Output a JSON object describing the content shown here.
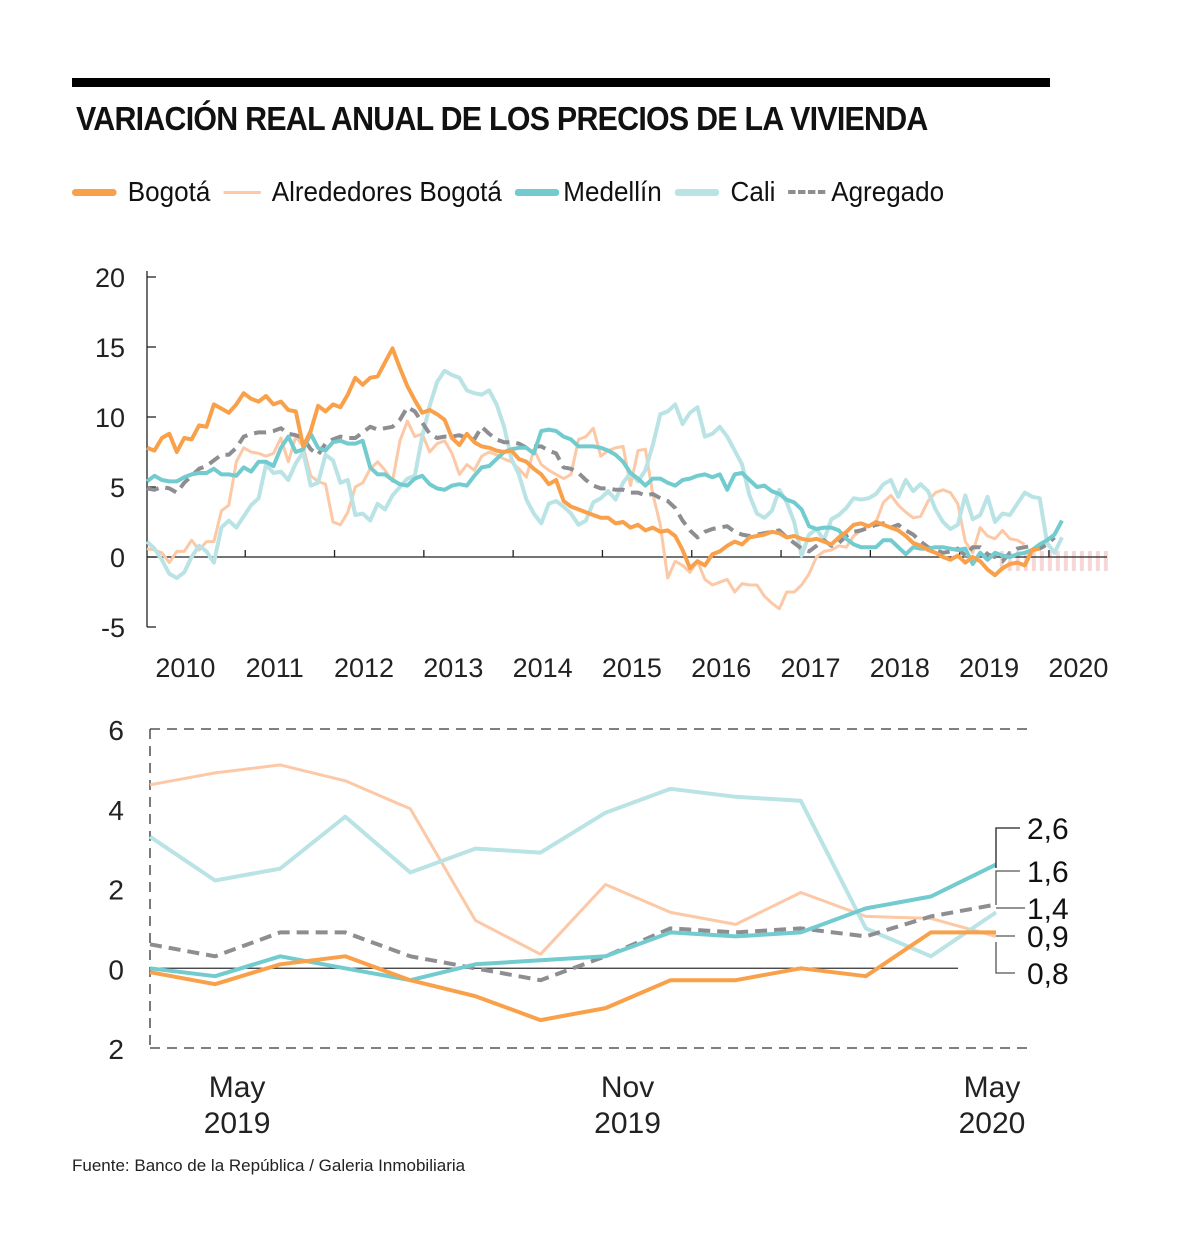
{
  "title": "VARIACIÓN REAL ANUAL DE LOS PRECIOS DE LA VIVIENDA",
  "source": "Fuente: Banco de la República / Galeria Inmobiliaria",
  "legend": [
    {
      "label": "Bogotá",
      "color": "#f9a14a",
      "style": "thick"
    },
    {
      "label": "Alrededores Bogotá",
      "color": "#fcc8a6",
      "style": "thin"
    },
    {
      "label": "Medellín",
      "color": "#72cbcf",
      "style": "thick"
    },
    {
      "label": "Cali",
      "color": "#b9e3e5",
      "style": "thick"
    },
    {
      "label": "Agregado",
      "color": "#8e8e92",
      "style": "dashed"
    }
  ],
  "chart_data": [
    {
      "type": "line",
      "title": "Variación real anual (2010–2020)",
      "xlabel": "",
      "ylabel": "",
      "x_start": 2009.9,
      "x_step": 0.0833,
      "xlim": [
        2009.9,
        2020.65
      ],
      "ylim": [
        -5,
        20
      ],
      "yticks": [
        "20",
        "15",
        "10",
        "5",
        "0",
        "-5"
      ],
      "ytick_values": [
        20,
        15,
        10,
        5,
        0,
        -5
      ],
      "xticks": [
        "2010",
        "2011",
        "2012",
        "2013",
        "2014",
        "2015",
        "2016",
        "2017",
        "2018",
        "2019",
        "2020"
      ],
      "xtick_values": [
        2010,
        2011,
        2012,
        2013,
        2014,
        2015,
        2016,
        2017,
        2018,
        2019,
        2020
      ],
      "shaded_region": {
        "from": 2019.45,
        "to": 2020.65,
        "color": "#f2c9c9"
      },
      "series": [
        {
          "name": "Bogotá",
          "values": [
            7.8,
            7.6,
            8.5,
            8.8,
            7.5,
            8.5,
            8.4,
            9.4,
            9.3,
            10.9,
            10.6,
            10.3,
            10.9,
            11.7,
            11.3,
            11.1,
            11.5,
            10.9,
            11.1,
            10.5,
            10.4,
            7.9,
            9.0,
            10.8,
            10.4,
            10.9,
            10.7,
            11.6,
            12.8,
            12.3,
            12.8,
            12.9,
            13.9,
            14.9,
            13.5,
            12.2,
            11.2,
            10.3,
            10.5,
            10.2,
            9.8,
            8.5,
            8.0,
            8.8,
            8.2,
            7.9,
            7.8,
            7.6,
            7.5,
            7.6,
            7.0,
            6.8,
            6.3,
            5.9,
            5.2,
            5.5,
            4.0,
            3.6,
            3.4,
            3.2,
            3.0,
            2.8,
            2.8,
            2.4,
            2.5,
            2.1,
            2.3,
            1.9,
            2.1,
            1.8,
            1.9,
            1.5,
            0.5,
            -0.8,
            -0.3,
            -0.6,
            0.2,
            0.4,
            0.8,
            1.1,
            0.9,
            1.4,
            1.5,
            1.6,
            1.8,
            1.7,
            1.4,
            1.5,
            1.3,
            1.2,
            1.3,
            1.1,
            0.9,
            1.4,
            1.8,
            2.3,
            2.4,
            2.2,
            2.5,
            2.3,
            2.1,
            1.9,
            1.5,
            1.0,
            0.8,
            0.5,
            0.3,
            0.0,
            -0.2,
            0.1,
            -0.4,
            0.0,
            -0.3,
            -0.9,
            -1.3,
            -0.8,
            -0.5,
            -0.4,
            -0.6,
            0.5,
            0.6
          ]
        },
        {
          "name": "Alrededores Bogotá",
          "values": [
            0.6,
            0.5,
            0.3,
            -0.4,
            0.4,
            0.4,
            1.2,
            0.5,
            1.1,
            1.1,
            3.3,
            3.7,
            6.8,
            7.8,
            7.5,
            7.4,
            7.2,
            7.4,
            8.5,
            6.8,
            8.6,
            7.9,
            5.8,
            5.4,
            5.2,
            2.5,
            2.3,
            3.2,
            5.0,
            5.3,
            6.3,
            6.8,
            6.2,
            5.4,
            8.3,
            9.7,
            8.6,
            8.8,
            7.5,
            8.1,
            8.3,
            7.4,
            5.9,
            6.6,
            6.2,
            7.2,
            7.5,
            7.3,
            7.0,
            6.8,
            6.3,
            5.7,
            7.7,
            6.6,
            6.2,
            5.9,
            5.6,
            5.9,
            8.4,
            8.6,
            9.2,
            7.2,
            7.6,
            7.8,
            7.9,
            5.1,
            7.6,
            7.7,
            4.5,
            2.3,
            -1.5,
            -0.3,
            -0.6,
            -1.1,
            -0.3,
            -1.6,
            -2.0,
            -1.8,
            -1.6,
            -2.5,
            -1.9,
            -2.0,
            -2.0,
            -2.8,
            -3.3,
            -3.7,
            -2.5,
            -2.5,
            -2.0,
            -1.2,
            0.0,
            0.4,
            0.5,
            0.8,
            0.7,
            1.5,
            1.9,
            2.2,
            2.5,
            3.9,
            4.4,
            3.7,
            3.2,
            2.8,
            2.9,
            4.0,
            4.6,
            4.8,
            4.6,
            3.8,
            1.1,
            0.3,
            2.1,
            1.5,
            1.3,
            1.9,
            1.3,
            1.2,
            0.9
          ]
        },
        {
          "name": "Medellín",
          "values": [
            5.4,
            5.8,
            5.5,
            5.4,
            5.4,
            5.7,
            5.9,
            6.0,
            6.0,
            6.3,
            5.9,
            5.9,
            5.8,
            6.4,
            6.1,
            6.8,
            6.8,
            6.5,
            7.8,
            8.6,
            7.5,
            7.7,
            8.8,
            7.8,
            7.6,
            8.2,
            8.3,
            8.1,
            8.1,
            8.3,
            6.4,
            5.9,
            5.9,
            5.5,
            5.2,
            5.1,
            5.6,
            5.8,
            5.2,
            4.9,
            4.8,
            5.1,
            5.2,
            5.1,
            5.8,
            6.4,
            6.5,
            7.0,
            7.5,
            7.7,
            7.8,
            7.8,
            7.4,
            9.0,
            9.1,
            9.0,
            8.6,
            8.4,
            7.9,
            7.9,
            7.9,
            7.8,
            7.6,
            7.3,
            6.8,
            6.0,
            5.6,
            5.1,
            5.6,
            5.6,
            5.3,
            5.1,
            5.5,
            5.6,
            5.8,
            5.9,
            5.7,
            5.9,
            4.8,
            5.9,
            6.0,
            5.5,
            5.0,
            5.1,
            4.7,
            4.5,
            4.1,
            3.9,
            3.4,
            2.2,
            2.0,
            2.1,
            2.1,
            1.9,
            1.3,
            0.9,
            0.7,
            0.7,
            0.7,
            1.2,
            1.2,
            0.7,
            0.2,
            0.7,
            0.6,
            0.6,
            0.7,
            0.7,
            0.6,
            0.5,
            0.6,
            -0.5,
            0.3,
            -0.2,
            0.3,
            0.1,
            0.0,
            0.2,
            0.3,
            0.5,
            0.9,
            1.2,
            1.6,
            2.6
          ]
        },
        {
          "name": "Cali",
          "values": [
            1.1,
            0.6,
            -0.2,
            -1.2,
            -1.5,
            -1.1,
            0.0,
            0.8,
            0.4,
            -0.4,
            2.1,
            2.6,
            2.1,
            2.9,
            3.7,
            4.2,
            6.6,
            6.0,
            6.1,
            5.5,
            6.7,
            7.5,
            5.1,
            5.3,
            7.3,
            6.9,
            5.3,
            5.5,
            3.0,
            3.1,
            2.6,
            3.8,
            3.4,
            4.4,
            5.0,
            5.6,
            5.8,
            8.6,
            10.8,
            12.5,
            13.3,
            13.0,
            12.8,
            11.9,
            11.7,
            11.6,
            11.9,
            10.9,
            9.3,
            7.0,
            5.9,
            4.1,
            3.1,
            2.4,
            3.8,
            4.0,
            3.6,
            3.1,
            2.3,
            2.6,
            3.9,
            4.2,
            4.7,
            4.1,
            5.3,
            6.0,
            5.4,
            6.2,
            8.0,
            10.2,
            10.4,
            10.9,
            9.5,
            10.3,
            10.7,
            8.6,
            8.8,
            9.3,
            8.6,
            7.6,
            6.6,
            4.4,
            3.1,
            2.8,
            3.3,
            4.8,
            3.9,
            2.5,
            0.1,
            1.6,
            2.0,
            1.2,
            2.7,
            3.0,
            3.5,
            4.2,
            4.1,
            4.2,
            4.5,
            5.2,
            5.5,
            4.3,
            5.5,
            4.7,
            5.2,
            4.7,
            3.4,
            2.5,
            2.0,
            2.3,
            4.4,
            2.7,
            3.0,
            4.3,
            2.5,
            3.1,
            3.0,
            3.8,
            4.6,
            4.3,
            4.2,
            1.0,
            0.3,
            1.4
          ]
        },
        {
          "name": "Agregado",
          "values": [
            4.9,
            4.8,
            5.0,
            4.9,
            4.6,
            5.3,
            5.8,
            6.3,
            6.5,
            6.9,
            7.3,
            7.3,
            7.8,
            8.6,
            8.8,
            8.9,
            8.9,
            9.0,
            9.2,
            8.8,
            8.7,
            8.5,
            7.7,
            7.3,
            8.1,
            8.4,
            8.6,
            8.5,
            8.5,
            8.9,
            9.3,
            9.1,
            9.2,
            9.3,
            9.8,
            10.7,
            10.4,
            9.6,
            8.8,
            8.5,
            8.6,
            8.6,
            8.7,
            8.5,
            8.4,
            9.3,
            8.8,
            8.4,
            8.2,
            8.2,
            8.1,
            7.8,
            7.9,
            7.9,
            7.6,
            7.4,
            6.4,
            6.3,
            6.0,
            5.5,
            5.1,
            4.9,
            4.9,
            4.8,
            4.8,
            4.6,
            4.6,
            4.4,
            4.5,
            4.2,
            4.0,
            3.5,
            2.6,
            1.9,
            1.4,
            1.8,
            2.0,
            2.1,
            2.2,
            1.8,
            1.6,
            1.5,
            1.6,
            1.7,
            1.8,
            1.9,
            1.4,
            1.0,
            0.6,
            0.4,
            0.8,
            1.2,
            0.8,
            1.0,
            1.5,
            1.8,
            1.9,
            2.1,
            2.3,
            2.4,
            2.1,
            2.3,
            1.9,
            1.6,
            1.1,
            0.7,
            0.5,
            0.3,
            0.4,
            0.6,
            0.1,
            0.7,
            0.7,
            0.2,
            0.0,
            -0.3,
            0.3,
            0.6,
            0.7,
            0.8,
            0.6,
            0.9,
            1.4
          ]
        }
      ]
    },
    {
      "type": "line",
      "title": "Detalle mayo 2019 – mayo 2020",
      "xlabel": "",
      "ylabel": "",
      "ylim": [
        -2,
        6
      ],
      "yticks": [
        "6",
        "4",
        "2",
        "0",
        "2"
      ],
      "ytick_values": [
        6,
        4,
        2,
        0,
        -2
      ],
      "xticks": [
        "May\n2019",
        "Nov\n2019",
        "May\n2020"
      ],
      "xtick_lines": [
        [
          "May",
          "2019"
        ],
        [
          "Nov",
          "2019"
        ],
        [
          "May",
          "2020"
        ]
      ],
      "xtick_index": [
        1,
        7,
        13
      ],
      "x_count": 14,
      "end_labels": [
        "2,6",
        "1,6",
        "1,4",
        "0,9",
        "0,8"
      ],
      "series": [
        {
          "name": "Bogotá",
          "values": [
            -0.1,
            -0.4,
            0.1,
            0.3,
            -0.3,
            -0.7,
            -1.3,
            -1.0,
            -0.3,
            -0.3,
            0.0,
            -0.2,
            0.9,
            0.9
          ]
        },
        {
          "name": "Alrededores Bogotá",
          "values": [
            4.6,
            4.9,
            5.1,
            4.7,
            4.0,
            1.2,
            0.35,
            2.1,
            1.4,
            1.1,
            1.9,
            1.3,
            1.25,
            0.8
          ]
        },
        {
          "name": "Medellín",
          "values": [
            0.0,
            -0.2,
            0.3,
            0.0,
            -0.3,
            0.1,
            0.2,
            0.3,
            0.9,
            0.8,
            0.9,
            1.5,
            1.8,
            2.6
          ]
        },
        {
          "name": "Cali",
          "values": [
            3.3,
            2.2,
            2.5,
            3.8,
            2.4,
            3.0,
            2.9,
            3.9,
            4.5,
            4.3,
            4.2,
            1.0,
            0.3,
            1.4
          ]
        },
        {
          "name": "Agregado",
          "values": [
            0.6,
            0.3,
            0.9,
            0.9,
            0.3,
            0.0,
            -0.3,
            0.3,
            1.0,
            0.9,
            1.0,
            0.8,
            1.3,
            1.6
          ]
        }
      ]
    }
  ]
}
